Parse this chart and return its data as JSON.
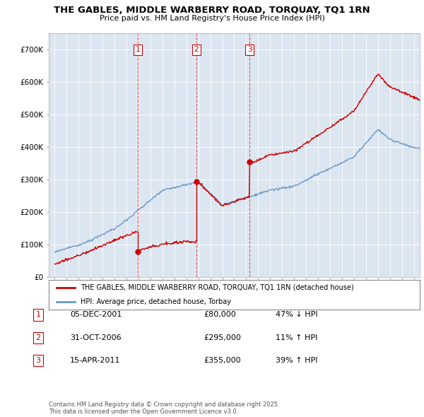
{
  "title": "THE GABLES, MIDDLE WARBERRY ROAD, TORQUAY, TQ1 1RN",
  "subtitle": "Price paid vs. HM Land Registry's House Price Index (HPI)",
  "legend_line1": "THE GABLES, MIDDLE WARBERRY ROAD, TORQUAY, TQ1 1RN (detached house)",
  "legend_line2": "HPI: Average price, detached house, Torbay",
  "footer": "Contains HM Land Registry data © Crown copyright and database right 2025.\nThis data is licensed under the Open Government Licence v3.0.",
  "transactions": [
    {
      "num": 1,
      "date": "05-DEC-2001",
      "price": 80000,
      "pct": "47% ↓ HPI",
      "year": 2001.92
    },
    {
      "num": 2,
      "date": "31-OCT-2006",
      "price": 295000,
      "pct": "11% ↑ HPI",
      "year": 2006.83
    },
    {
      "num": 3,
      "date": "15-APR-2011",
      "price": 355000,
      "pct": "39% ↑ HPI",
      "year": 2011.29
    }
  ],
  "red_color": "#cc0000",
  "blue_color": "#6699cc",
  "plot_bg": "#dce6f1",
  "background": "#ffffff",
  "ylim": [
    0,
    750000
  ],
  "yticks": [
    0,
    100000,
    200000,
    300000,
    400000,
    500000,
    600000,
    700000
  ],
  "ytick_labels": [
    "£0",
    "£100K",
    "£200K",
    "£300K",
    "£400K",
    "£500K",
    "£600K",
    "£700K"
  ],
  "xlim_start": 1994.5,
  "xlim_end": 2025.5
}
